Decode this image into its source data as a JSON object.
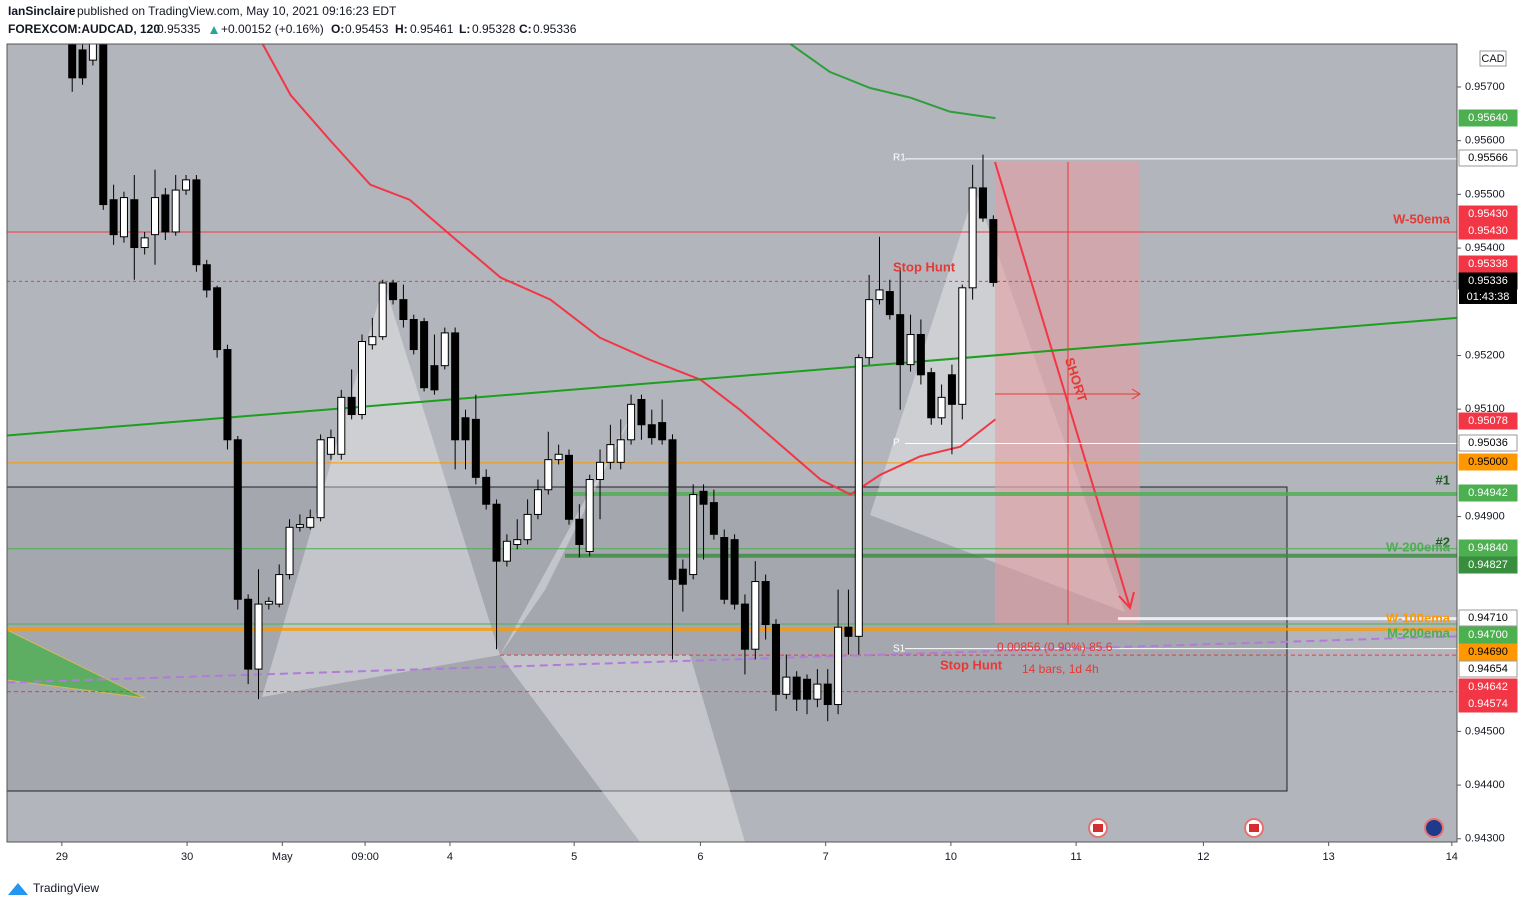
{
  "header": {
    "publisher": "IanSinclaire",
    "published": "published on TradingView.com, May 10, 2021 09:16:23 EDT",
    "symbol": "FOREXCOM:AUDCAD, 120",
    "last": "0.95335",
    "change": "+0.00152 (+0.16%)",
    "o_label": "O:",
    "o": "0.95453",
    "h_label": "H:",
    "h": "0.95461",
    "l_label": "L:",
    "l": "0.95328",
    "c_label": "C:",
    "c": "0.95336"
  },
  "footer": {
    "brand": "TradingView"
  },
  "chart_data": {
    "type": "candlestick",
    "currency": "CAD",
    "countdown": "01:43:38",
    "up_color": "#ffffff",
    "down_color": "#000000",
    "ylim": [
      0.94294,
      0.9578
    ],
    "yticks": [
      {
        "value": 0.943,
        "label": "0.94300"
      },
      {
        "value": 0.944,
        "label": "0.94400"
      },
      {
        "value": 0.945,
        "label": "0.94500"
      },
      {
        "value": 0.949,
        "label": "0.94900"
      },
      {
        "value": 0.951,
        "label": "0.95100"
      },
      {
        "value": 0.952,
        "label": "0.95200"
      },
      {
        "value": 0.954,
        "label": "0.95400"
      },
      {
        "value": 0.955,
        "label": "0.95500"
      },
      {
        "value": 0.956,
        "label": "0.95600"
      },
      {
        "value": 0.957,
        "label": "0.95700"
      }
    ],
    "xlim": [
      -6.3,
      133.8
    ],
    "xticks": [
      {
        "value": -1.0,
        "label": "29"
      },
      {
        "value": 11.1,
        "label": "30"
      },
      {
        "value": 20.3,
        "label": "May"
      },
      {
        "value": 28.3,
        "label": "09:00"
      },
      {
        "value": 36.5,
        "label": "4"
      },
      {
        "value": 48.5,
        "label": "5"
      },
      {
        "value": 60.7,
        "label": "6"
      },
      {
        "value": 72.8,
        "label": "7"
      },
      {
        "value": 84.9,
        "label": "10"
      },
      {
        "value": 97.0,
        "label": "11"
      },
      {
        "value": 109.3,
        "label": "12"
      },
      {
        "value": 121.4,
        "label": "13"
      },
      {
        "value": 133.3,
        "label": "14"
      }
    ],
    "ohlc": [
      [
        0.9579,
        0.958,
        0.95691,
        0.95717
      ],
      [
        0.95769,
        0.9578,
        0.95704,
        0.95717
      ],
      [
        0.9575,
        0.9579,
        0.9574,
        0.9578
      ],
      [
        0.9578,
        0.9579,
        0.95471,
        0.95481
      ],
      [
        0.9549,
        0.95518,
        0.95406,
        0.95425
      ],
      [
        0.95421,
        0.95505,
        0.9541,
        0.95494
      ],
      [
        0.9549,
        0.95536,
        0.95341,
        0.95401
      ],
      [
        0.95401,
        0.9543,
        0.95388,
        0.95419
      ],
      [
        0.95425,
        0.95546,
        0.95369,
        0.95494
      ],
      [
        0.95499,
        0.95512,
        0.95415,
        0.9543
      ],
      [
        0.9543,
        0.95536,
        0.95423,
        0.95508
      ],
      [
        0.95508,
        0.95536,
        0.95499,
        0.95527
      ],
      [
        0.95527,
        0.95536,
        0.95356,
        0.95369
      ],
      [
        0.95369,
        0.95378,
        0.95308,
        0.95322
      ],
      [
        0.95326,
        0.9533,
        0.95196,
        0.95211
      ],
      [
        0.95211,
        0.9522,
        0.95025,
        0.95043
      ],
      [
        0.95043,
        0.9505,
        0.94727,
        0.94746
      ],
      [
        0.94746,
        0.94755,
        0.94588,
        0.94616
      ],
      [
        0.94616,
        0.94802,
        0.9456,
        0.94737
      ],
      [
        0.94737,
        0.9475,
        0.94727,
        0.94742
      ],
      [
        0.94737,
        0.94811,
        0.94731,
        0.94792
      ],
      [
        0.94792,
        0.94895,
        0.94783,
        0.9488
      ],
      [
        0.9488,
        0.94904,
        0.94872,
        0.94885
      ],
      [
        0.9488,
        0.94913,
        0.94876,
        0.94898
      ],
      [
        0.94898,
        0.95053,
        0.94891,
        0.95043
      ],
      [
        0.95016,
        0.95062,
        0.95006,
        0.95047
      ],
      [
        0.95016,
        0.95136,
        0.95006,
        0.95122
      ],
      [
        0.95122,
        0.95174,
        0.95081,
        0.9509
      ],
      [
        0.9509,
        0.95239,
        0.95081,
        0.95226
      ],
      [
        0.9522,
        0.9527,
        0.95211,
        0.95235
      ],
      [
        0.95235,
        0.95341,
        0.95229,
        0.95335
      ],
      [
        0.95335,
        0.95341,
        0.95295,
        0.95304
      ],
      [
        0.95304,
        0.95332,
        0.95252,
        0.95267
      ],
      [
        0.95267,
        0.95276,
        0.95202,
        0.95211
      ],
      [
        0.95263,
        0.9527,
        0.95133,
        0.9514
      ],
      [
        0.95181,
        0.95239,
        0.95127,
        0.95136
      ],
      [
        0.95181,
        0.95252,
        0.95174,
        0.95242
      ],
      [
        0.95242,
        0.95252,
        0.94988,
        0.95043
      ],
      [
        0.95084,
        0.95099,
        0.94988,
        0.95043
      ],
      [
        0.95081,
        0.95127,
        0.9496,
        0.94973
      ],
      [
        0.94973,
        0.94988,
        0.94913,
        0.94923
      ],
      [
        0.94923,
        0.94932,
        0.94653,
        0.94817
      ],
      [
        0.94817,
        0.94867,
        0.94807,
        0.94854
      ],
      [
        0.94848,
        0.94895,
        0.94839,
        0.94857
      ],
      [
        0.94857,
        0.94932,
        0.94848,
        0.94904
      ],
      [
        0.94904,
        0.94969,
        0.94895,
        0.9495
      ],
      [
        0.9495,
        0.95058,
        0.94941,
        0.95006
      ],
      [
        0.95006,
        0.95034,
        0.94997,
        0.95016
      ],
      [
        0.95014,
        0.95025,
        0.94885,
        0.94895
      ],
      [
        0.94895,
        0.94923,
        0.94824,
        0.94848
      ],
      [
        0.94835,
        0.94978,
        0.94826,
        0.94969
      ],
      [
        0.94969,
        0.95025,
        0.94895,
        0.95001
      ],
      [
        0.95001,
        0.95071,
        0.94988,
        0.95034
      ],
      [
        0.95001,
        0.95081,
        0.94988,
        0.95043
      ],
      [
        0.95043,
        0.95127,
        0.95034,
        0.95109
      ],
      [
        0.95118,
        0.95127,
        0.95043,
        0.95071
      ],
      [
        0.95071,
        0.95099,
        0.95034,
        0.95047
      ],
      [
        0.95075,
        0.95118,
        0.95034,
        0.95043
      ],
      [
        0.95043,
        0.95053,
        0.94634,
        0.94783
      ],
      [
        0.94802,
        0.9482,
        0.94723,
        0.94774
      ],
      [
        0.94792,
        0.9496,
        0.94783,
        0.94941
      ],
      [
        0.94947,
        0.9496,
        0.9482,
        0.94923
      ],
      [
        0.94926,
        0.9495,
        0.94857,
        0.94867
      ],
      [
        0.94861,
        0.94876,
        0.94737,
        0.94746
      ],
      [
        0.94857,
        0.94867,
        0.94727,
        0.94737
      ],
      [
        0.94737,
        0.94755,
        0.94606,
        0.94653
      ],
      [
        0.94653,
        0.94817,
        0.94634,
        0.94779
      ],
      [
        0.94779,
        0.94792,
        0.94671,
        0.94699
      ],
      [
        0.94699,
        0.94709,
        0.94538,
        0.94569
      ],
      [
        0.94569,
        0.94643,
        0.9456,
        0.94601
      ],
      [
        0.94601,
        0.94612,
        0.94538,
        0.9456
      ],
      [
        0.94597,
        0.94606,
        0.94532,
        0.9456
      ],
      [
        0.9456,
        0.94616,
        0.94545,
        0.94588
      ],
      [
        0.94588,
        0.94616,
        0.94519,
        0.9455
      ],
      [
        0.9455,
        0.94764,
        0.94532,
        0.94694
      ],
      [
        0.94694,
        0.94764,
        0.94643,
        0.94677
      ],
      [
        0.94677,
        0.95202,
        0.94643,
        0.95196
      ],
      [
        0.95196,
        0.9535,
        0.95183,
        0.95304
      ],
      [
        0.95304,
        0.95421,
        0.95295,
        0.95322
      ],
      [
        0.95319,
        0.95341,
        0.95267,
        0.95276
      ],
      [
        0.95276,
        0.9536,
        0.95099,
        0.95183
      ],
      [
        0.95183,
        0.95276,
        0.9517,
        0.95239
      ],
      [
        0.95239,
        0.95267,
        0.95146,
        0.95164
      ],
      [
        0.95168,
        0.95177,
        0.95071,
        0.95084
      ],
      [
        0.95084,
        0.95146,
        0.95071,
        0.95122
      ],
      [
        0.95164,
        0.95183,
        0.95016,
        0.95109
      ],
      [
        0.95109,
        0.95332,
        0.95081,
        0.95326
      ],
      [
        0.95326,
        0.95555,
        0.95304,
        0.95512
      ],
      [
        0.95512,
        0.95574,
        0.95449,
        0.95456
      ],
      [
        0.95453,
        0.95461,
        0.95328,
        0.95336
      ]
    ],
    "lines": [
      {
        "color": "#f23645",
        "x": [
          18.4,
          21.1,
          24.9,
          28.8,
          32.6,
          36.5,
          41.4,
          46.2,
          51.0,
          55.8,
          60.7,
          64.5,
          68.4,
          72.3,
          75.2,
          78.1,
          81.9,
          85.8,
          89.2
        ],
        "values": [
          0.9578,
          0.95685,
          0.95601,
          0.95518,
          0.9549,
          0.95425,
          0.95345,
          0.95304,
          0.95233,
          0.95192,
          0.95155,
          0.95099,
          0.95034,
          0.94969,
          0.94941,
          0.94978,
          0.95012,
          0.9503,
          0.95081
        ]
      },
      {
        "color": "#2e9e3a",
        "x": [
          69.4,
          73.2,
          77.1,
          81.0,
          84.8,
          89.2
        ],
        "values": [
          0.9578,
          0.95728,
          0.95698,
          0.9568,
          0.95654,
          0.95642
        ]
      },
      {
        "color": "#1e9e1e",
        "x": [
          -6.3,
          133.8
        ],
        "values": [
          0.95051,
          0.9527
        ]
      },
      {
        "color": "#b07cd8",
        "dashed": true,
        "x": [
          -6.3,
          133.8
        ],
        "values": [
          0.94591,
          0.94677
        ]
      }
    ],
    "levels": [
      {
        "value": 0.9564,
        "label": "0.95640",
        "color": "#4caf50",
        "text_color": "#ffffff"
      },
      {
        "value": 0.95566,
        "label": "0.95566",
        "color": "#ffffff",
        "text_color": "#000000"
      },
      {
        "value": 0.9543,
        "label": "0.95430",
        "color": "#f23645",
        "text_color": "#ffffff"
      },
      {
        "value": 0.9543,
        "label": "0.95430",
        "color": "#f23645",
        "text_color": "#ffffff"
      },
      {
        "value": 0.95338,
        "label": "0.95338",
        "color": "#f23645",
        "text_color": "#ffffff"
      },
      {
        "value": 0.95336,
        "label": "0.95336",
        "color": "#000000",
        "text_color": "#ffffff"
      },
      {
        "value": 0.95078,
        "label": "0.95078",
        "color": "#f23645",
        "text_color": "#ffffff"
      },
      {
        "value": 0.95036,
        "label": "0.95036",
        "color": "#ffffff",
        "text_color": "#000000"
      },
      {
        "value": 0.95,
        "label": "0.95000",
        "color": "#ff9800",
        "text_color": "#000000"
      },
      {
        "value": 0.94942,
        "label": "0.94942",
        "color": "#4caf50",
        "text_color": "#ffffff"
      },
      {
        "value": 0.9484,
        "label": "0.94840",
        "color": "#4caf50",
        "text_color": "#ffffff"
      },
      {
        "value": 0.94827,
        "label": "0.94827",
        "color": "#388e3c",
        "text_color": "#ffffff"
      },
      {
        "value": 0.9471,
        "label": "0.94710",
        "color": "#ffffff",
        "text_color": "#000000"
      },
      {
        "value": 0.947,
        "label": "0.94700",
        "color": "#4caf50",
        "text_color": "#ffffff"
      },
      {
        "value": 0.9469,
        "label": "0.94690",
        "color": "#ff9800",
        "text_color": "#000000"
      },
      {
        "value": 0.94654,
        "label": "0.94654",
        "color": "#ffffff",
        "text_color": "#000000"
      },
      {
        "value": 0.94642,
        "label": "0.94642",
        "color": "#f23645",
        "text_color": "#ffffff"
      },
      {
        "value": 0.94574,
        "label": "0.94574",
        "color": "#f23645",
        "text_color": "#ffffff"
      }
    ],
    "annotations": [
      "W-50ema",
      "Stop Hunt",
      "SHORT",
      "#1",
      "#2",
      "W-200ema",
      "W-100ema",
      "M-200ema",
      "R1",
      "P",
      "S1",
      "Stop Hunt",
      "0.00856 (0.90%) 85.6",
      "14 bars, 1d 4h"
    ]
  }
}
